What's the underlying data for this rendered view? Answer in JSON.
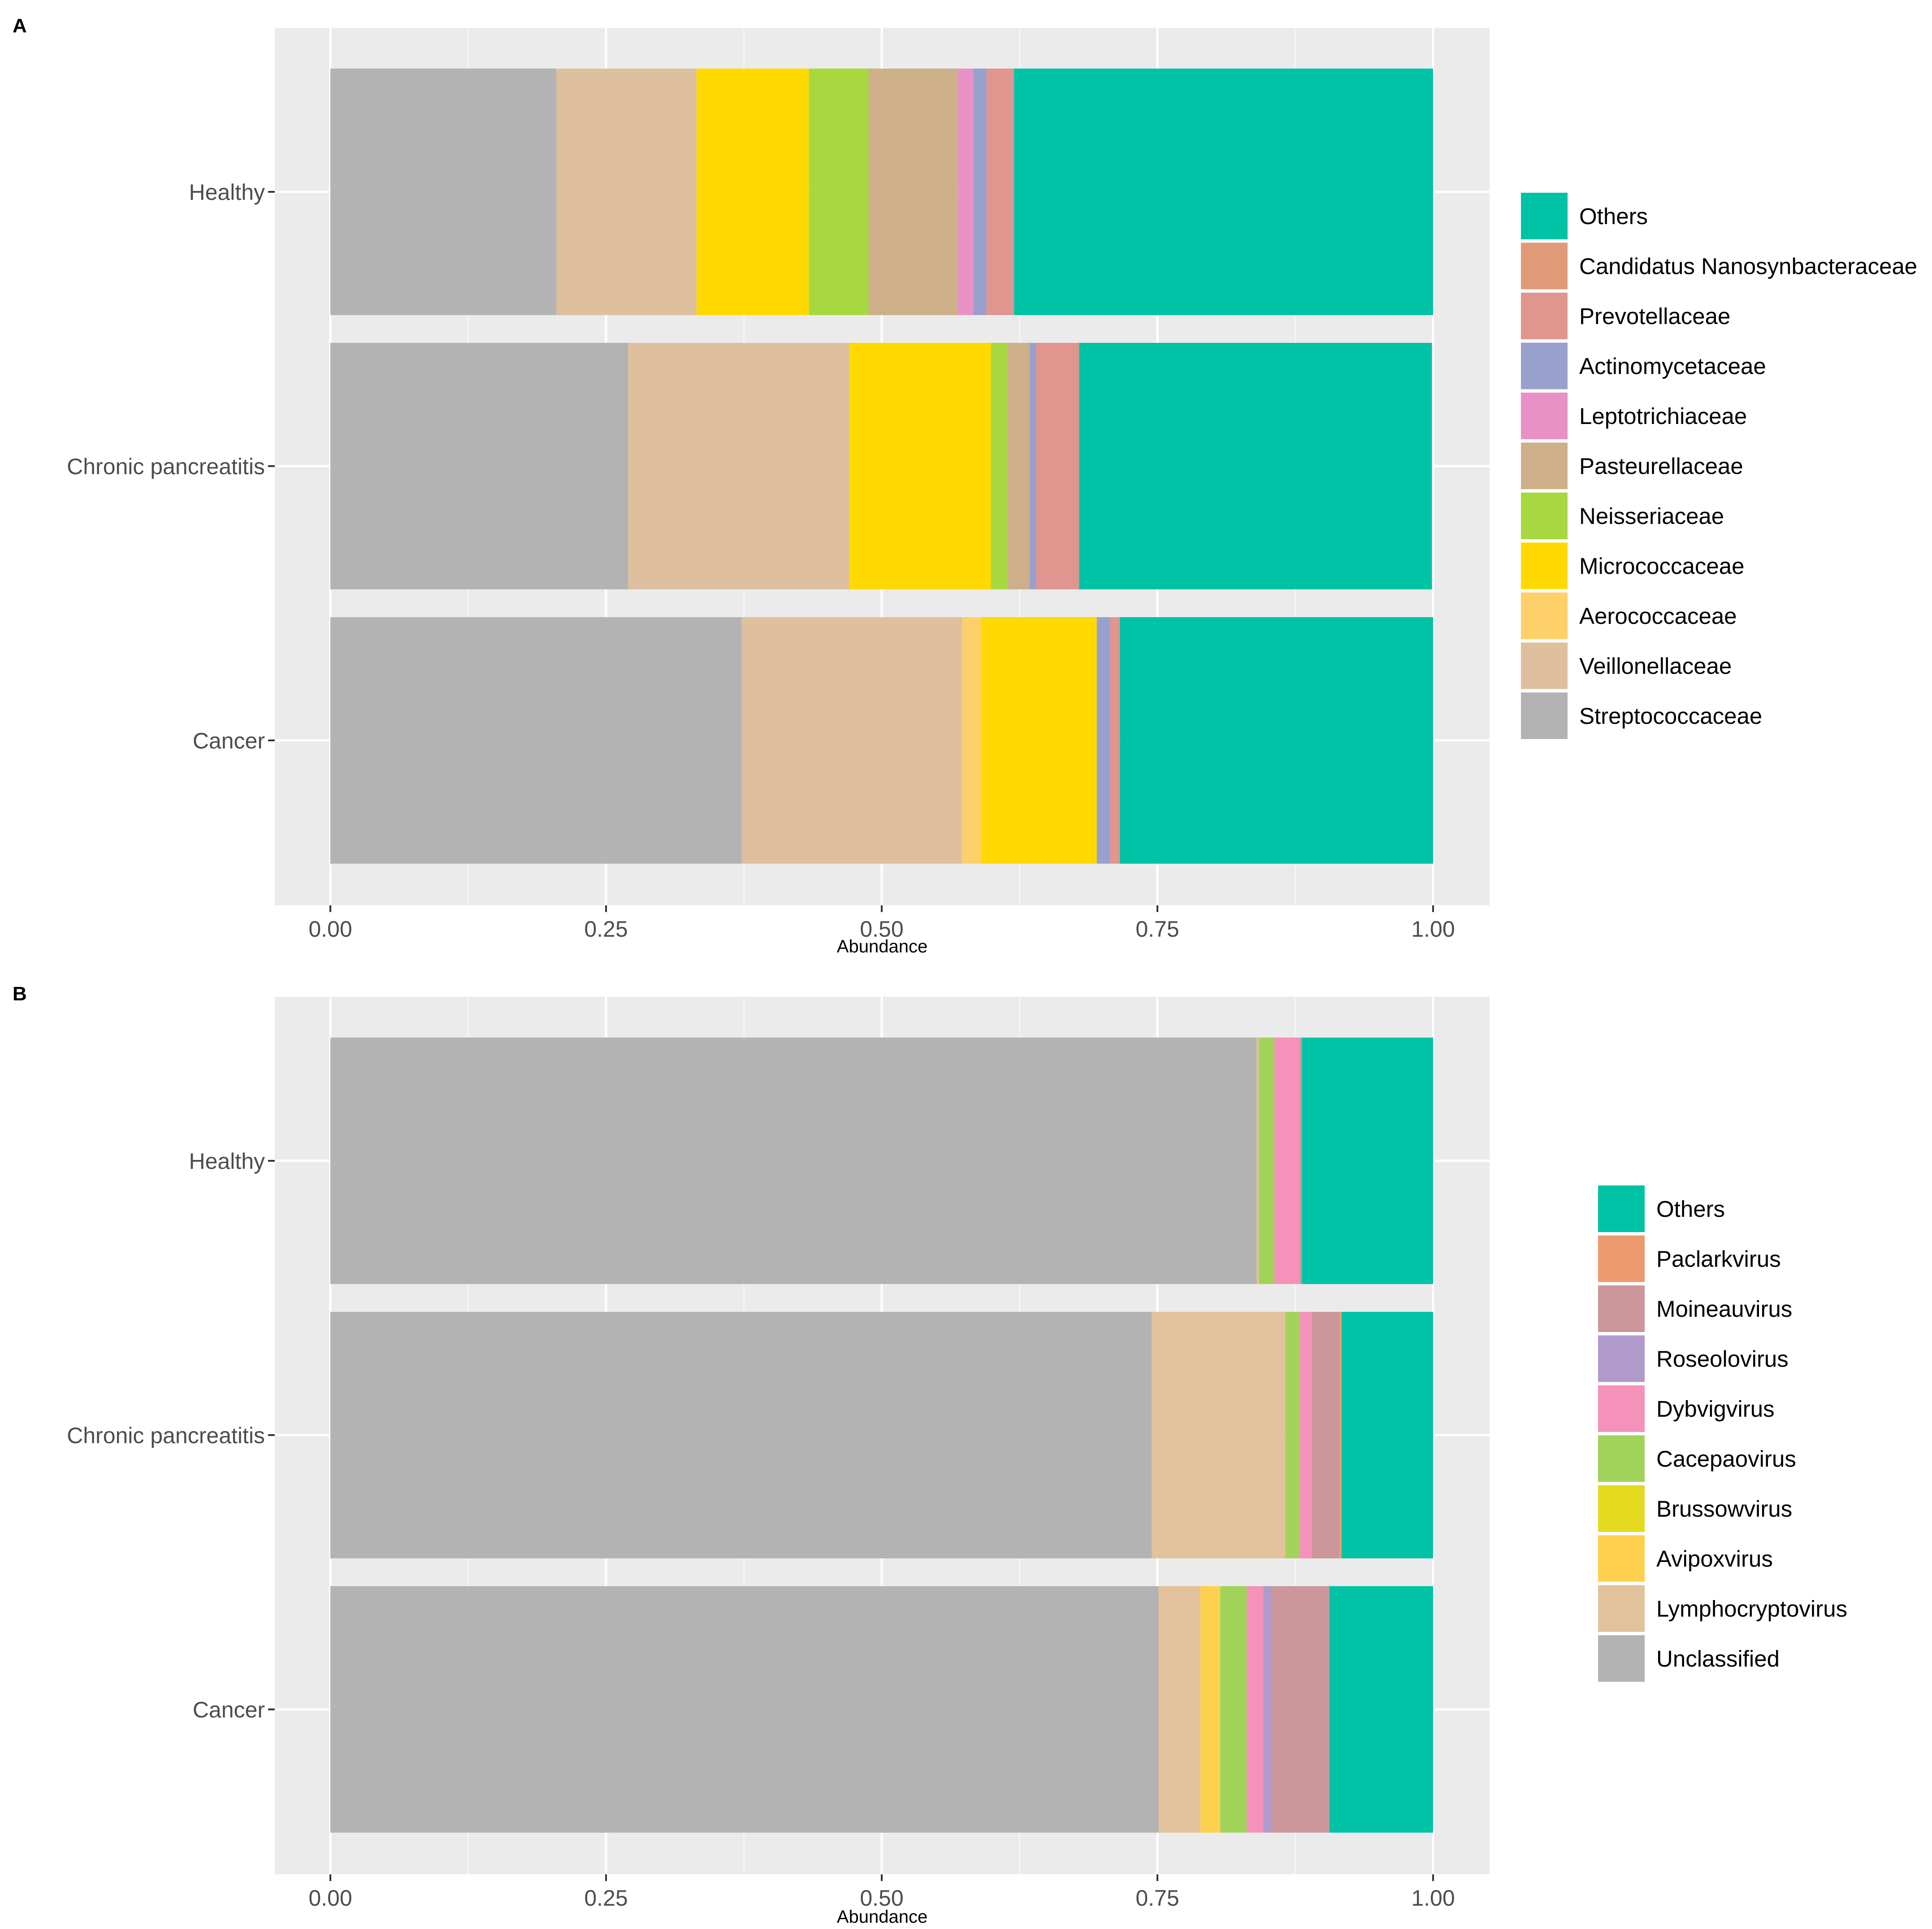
{
  "chart_data": [
    {
      "panel": "A",
      "type": "bar",
      "orientation": "horizontal",
      "stacked": true,
      "xlabel": "Abundance",
      "ylabel": "",
      "xlim": [
        0,
        1
      ],
      "x_ticks": [
        "0.00",
        "0.25",
        "0.50",
        "0.75",
        "1.00"
      ],
      "categories": [
        "Healthy",
        "Chronic pancreatitis",
        "Cancer"
      ],
      "series": [
        {
          "name": "Streptococcaceae",
          "color": "#B3B3B3",
          "values": [
            0.205,
            0.27,
            0.373
          ]
        },
        {
          "name": "Veillonellaceae",
          "color": "#DEC09F",
          "values": [
            0.127,
            0.201,
            0.2
          ]
        },
        {
          "name": "Aerococcaceae",
          "color": "#FDD06A",
          "values": [
            0.0,
            0.0,
            0.017
          ]
        },
        {
          "name": "Micrococcaceae",
          "color": "#FFD900",
          "values": [
            0.102,
            0.128,
            0.105
          ]
        },
        {
          "name": "Neisseriaceae",
          "color": "#A8D840",
          "values": [
            0.054,
            0.015,
            0.0
          ]
        },
        {
          "name": "Pasteurellaceae",
          "color": "#CDB08A",
          "values": [
            0.081,
            0.02,
            0.0
          ]
        },
        {
          "name": "Leptotrichiaceae",
          "color": "#E991C6",
          "values": [
            0.014,
            0.0,
            0.0
          ]
        },
        {
          "name": "Actinomycetaceae",
          "color": "#98A0CD",
          "values": [
            0.012,
            0.006,
            0.012
          ]
        },
        {
          "name": "Prevotellaceae",
          "color": "#E0958E",
          "values": [
            0.025,
            0.039,
            0.009
          ]
        },
        {
          "name": "Candidatus Nanosynbacteraceae",
          "color": "#E19A78",
          "values": [
            0.0,
            0.0,
            0.0
          ]
        },
        {
          "name": "Others",
          "color": "#00C2A5",
          "values": [
            0.38,
            0.32,
            0.284
          ]
        }
      ],
      "legend_order": [
        "Others",
        "Candidatus Nanosynbacteraceae",
        "Prevotellaceae",
        "Actinomycetaceae",
        "Leptotrichiaceae",
        "Pasteurellaceae",
        "Neisseriaceae",
        "Micrococcaceae",
        "Aerococcaceae",
        "Veillonellaceae",
        "Streptococcaceae"
      ],
      "legend_position": "right",
      "grid": true
    },
    {
      "panel": "B",
      "type": "bar",
      "orientation": "horizontal",
      "stacked": true,
      "xlabel": "Abundance",
      "ylabel": "",
      "xlim": [
        0,
        1
      ],
      "x_ticks": [
        "0.00",
        "0.25",
        "0.50",
        "0.75",
        "1.00"
      ],
      "categories": [
        "Healthy",
        "Chronic pancreatitis",
        "Cancer"
      ],
      "series": [
        {
          "name": "Unclassified",
          "color": "#B3B3B3",
          "values": [
            0.84,
            0.745,
            0.751
          ]
        },
        {
          "name": "Lymphocryptovirus",
          "color": "#E2C29B",
          "values": [
            0.002,
            0.121,
            0.038
          ]
        },
        {
          "name": "Avipoxvirus",
          "color": "#FDD14E",
          "values": [
            0.0,
            0.0,
            0.018
          ]
        },
        {
          "name": "Brussowvirus",
          "color": "#E3D91E",
          "values": [
            0.0,
            0.0,
            0.0
          ]
        },
        {
          "name": "Cacepaovirus",
          "color": "#A2D35A",
          "values": [
            0.014,
            0.013,
            0.024
          ]
        },
        {
          "name": "Dybvigvirus",
          "color": "#F492B9",
          "values": [
            0.023,
            0.011,
            0.015
          ]
        },
        {
          "name": "Roseolovirus",
          "color": "#B09ACB",
          "values": [
            0.0,
            0.0,
            0.008
          ]
        },
        {
          "name": "Moineauvirus",
          "color": "#CB979B",
          "values": [
            0.002,
            0.025,
            0.052
          ]
        },
        {
          "name": "Paclarkvirus",
          "color": "#EE9A71",
          "values": [
            0.0,
            0.002,
            0.0
          ]
        },
        {
          "name": "Others",
          "color": "#00C2A5",
          "values": [
            0.119,
            0.083,
            0.094
          ]
        }
      ],
      "legend_order": [
        "Others",
        "Paclarkvirus",
        "Moineauvirus",
        "Roseolovirus",
        "Dybvigvirus",
        "Cacepaovirus",
        "Brussowvirus",
        "Avipoxvirus",
        "Lymphocryptovirus",
        "Unclassified"
      ],
      "legend_position": "right",
      "grid": true
    }
  ]
}
